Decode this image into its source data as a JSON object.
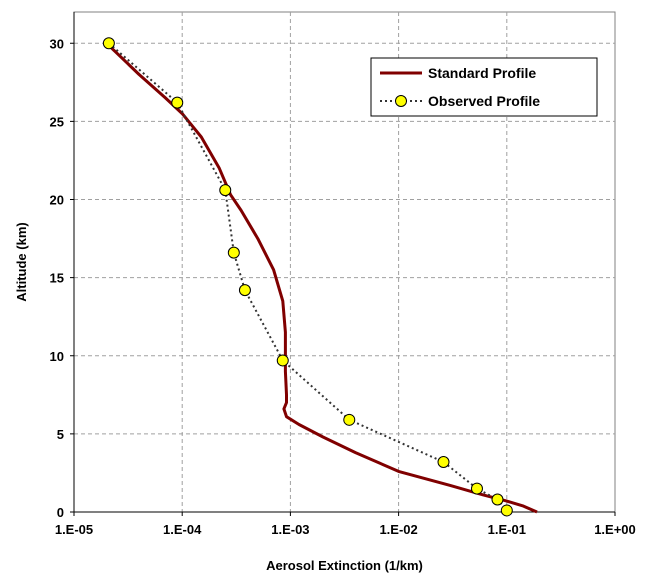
{
  "chart_data": {
    "type": "line",
    "xlabel": "Aerosol Extinction (1/km)",
    "ylabel": "Altitude (km)",
    "x_scale": "log",
    "xlim": [
      1e-05,
      1
    ],
    "ylim": [
      0,
      32
    ],
    "x_ticks": [
      1e-05,
      0.0001,
      0.001,
      0.01,
      0.1,
      1
    ],
    "x_tick_labels": [
      "1.E-05",
      "1.E-04",
      "1.E-03",
      "1.E-02",
      "1.E-01",
      "1.E+00"
    ],
    "y_ticks": [
      0,
      5,
      10,
      15,
      20,
      25,
      30
    ],
    "y_tick_labels": [
      "0",
      "5",
      "10",
      "15",
      "20",
      "25",
      "30"
    ],
    "grid": true,
    "legend_position": "top-right",
    "series": [
      {
        "name": "Standard Profile",
        "style": "solid",
        "color": "#800000",
        "points": [
          [
            2e-05,
            30
          ],
          [
            4e-05,
            28
          ],
          [
            7e-05,
            26.5
          ],
          [
            0.0001,
            25.5
          ],
          [
            0.00015,
            24
          ],
          [
            0.00022,
            22
          ],
          [
            0.00028,
            20.3
          ],
          [
            0.00035,
            19.3
          ],
          [
            0.0005,
            17.5
          ],
          [
            0.0007,
            15.5
          ],
          [
            0.00085,
            13.5
          ],
          [
            0.0009,
            11.5
          ],
          [
            0.0009,
            9
          ],
          [
            0.00092,
            7.5
          ],
          [
            0.00092,
            7
          ],
          [
            0.00087,
            6.6
          ],
          [
            0.00092,
            6.1
          ],
          [
            0.0012,
            5.6
          ],
          [
            0.002,
            4.8
          ],
          [
            0.004,
            3.8
          ],
          [
            0.01,
            2.6
          ],
          [
            0.03,
            1.7
          ],
          [
            0.06,
            1.1
          ],
          [
            0.1,
            0.7
          ],
          [
            0.14,
            0.4
          ],
          [
            0.19,
            0
          ]
        ]
      },
      {
        "name": "Observed Profile",
        "style": "dotted",
        "color": "#333333",
        "marker_color": "#ffff00",
        "points": [
          [
            2.1e-05,
            30
          ],
          [
            9e-05,
            26.2
          ],
          [
            0.00025,
            20.6
          ],
          [
            0.0003,
            16.6
          ],
          [
            0.00038,
            14.2
          ],
          [
            0.00085,
            9.7
          ],
          [
            0.0035,
            5.9
          ],
          [
            0.026,
            3.2
          ],
          [
            0.053,
            1.5
          ],
          [
            0.082,
            0.8
          ],
          [
            0.1,
            0.1
          ]
        ]
      }
    ]
  }
}
